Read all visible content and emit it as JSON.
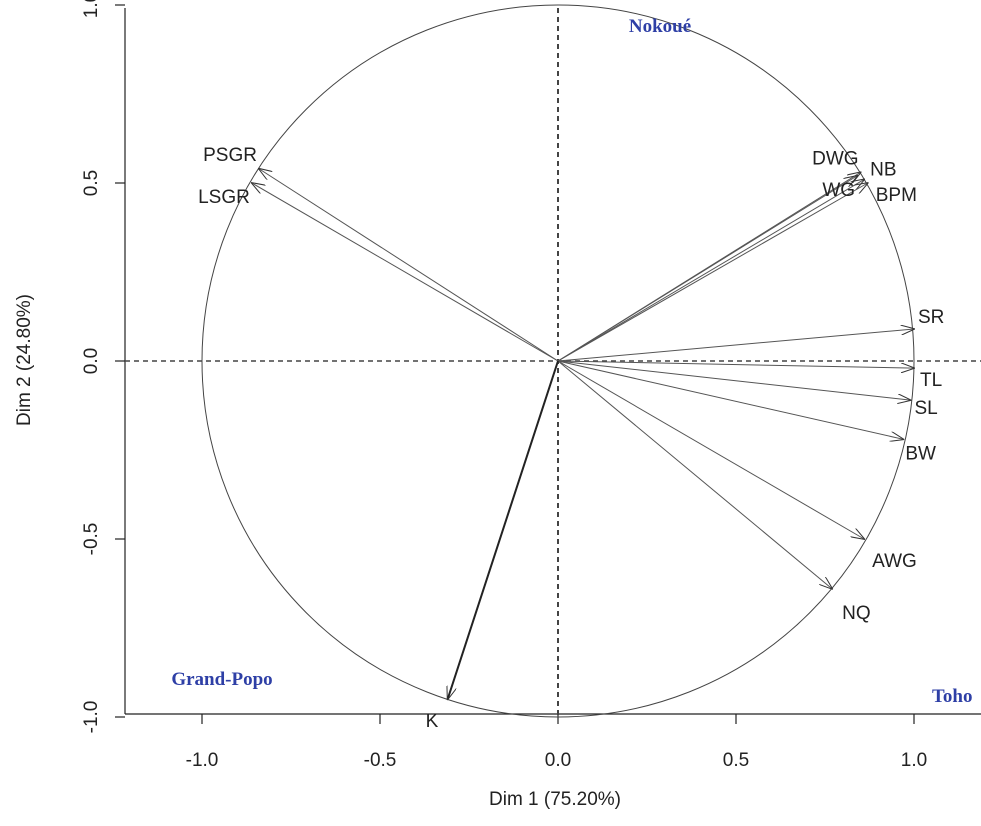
{
  "chart_data": {
    "type": "scatter",
    "subtype": "correlation-circle",
    "xlabel": "Dim 1 (75.20%)",
    "ylabel": "Dim 2 (24.80%)",
    "xlim": [
      -1.2,
      1.2
    ],
    "ylim": [
      -1.1,
      1.1
    ],
    "x_ticks": [
      "-1.0",
      "-0.5",
      "0.0",
      "0.5",
      "1.0"
    ],
    "y_ticks": [
      "-1.0",
      "-0.5",
      "0.0",
      "0.5",
      "1.0"
    ],
    "unit_circle": true,
    "reference_lines": "dashed at x=0 and y=0",
    "variables": [
      {
        "name": "PSGR",
        "x": -0.84,
        "y": 0.54
      },
      {
        "name": "LSGR",
        "x": -0.86,
        "y": 0.5
      },
      {
        "name": "DWG",
        "x": 0.85,
        "y": 0.53
      },
      {
        "name": "NB",
        "x": 0.86,
        "y": 0.51
      },
      {
        "name": "WG",
        "x": 0.84,
        "y": 0.52
      },
      {
        "name": "BPM",
        "x": 0.87,
        "y": 0.5
      },
      {
        "name": "SR",
        "x": 1.0,
        "y": 0.09
      },
      {
        "name": "TL",
        "x": 1.0,
        "y": -0.02
      },
      {
        "name": "SL",
        "x": 0.99,
        "y": -0.11
      },
      {
        "name": "BW",
        "x": 0.97,
        "y": -0.22
      },
      {
        "name": "AWG",
        "x": 0.86,
        "y": -0.5
      },
      {
        "name": "NQ",
        "x": 0.77,
        "y": -0.64
      },
      {
        "name": "K",
        "x": -0.31,
        "y": -0.95
      }
    ],
    "annotations": [
      {
        "text": "Nokoué",
        "color": "#2e3fa6"
      },
      {
        "text": "Grand-Popo",
        "color": "#2e3fa6"
      },
      {
        "text": "Toho",
        "color": "#2e3fa6"
      }
    ]
  }
}
